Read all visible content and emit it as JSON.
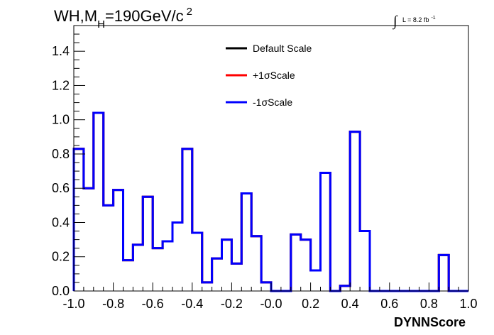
{
  "chart_data": {
    "type": "line",
    "title": {
      "main": "WH,M",
      "sub": "H",
      "tail": "=190GeV/c",
      "sup": "2"
    },
    "lumi": {
      "integral": "∫",
      "text": "L = 8.2 fb",
      "sup": "-1"
    },
    "xlabel": "DYNNScore",
    "ylabel": "",
    "xlim": [
      -1.0,
      1.0
    ],
    "ylim": [
      0,
      1.55
    ],
    "x_ticks": [
      "-1.0",
      "-0.8",
      "-0.6",
      "-0.4",
      "-0.2",
      "-0.0",
      "0.2",
      "0.4",
      "0.6",
      "0.8",
      "1.0"
    ],
    "y_ticks": [
      "0.0",
      "0.2",
      "0.4",
      "0.6",
      "0.8",
      "1.0",
      "1.2",
      "1.4"
    ],
    "bin_width": 0.05,
    "bin_low_edges": [
      -1.0,
      -0.95,
      -0.9,
      -0.85,
      -0.8,
      -0.75,
      -0.7,
      -0.65,
      -0.6,
      -0.55,
      -0.5,
      -0.45,
      -0.4,
      -0.35,
      -0.3,
      -0.25,
      -0.2,
      -0.15,
      -0.1,
      -0.05,
      0.0,
      0.05,
      0.1,
      0.15,
      0.2,
      0.25,
      0.3,
      0.35,
      0.4,
      0.45,
      0.5,
      0.55,
      0.6,
      0.65,
      0.7,
      0.75,
      0.8,
      0.85,
      0.9,
      0.95
    ],
    "series": [
      {
        "name": "Default Scale",
        "color": "#000000",
        "values": [
          0.83,
          0.6,
          1.04,
          0.5,
          0.59,
          0.18,
          0.27,
          0.55,
          0.25,
          0.29,
          0.4,
          0.83,
          0.34,
          0.05,
          0.19,
          0.3,
          0.16,
          0.57,
          0.32,
          0.05,
          0.0,
          0.0,
          0.33,
          0.3,
          0.12,
          0.69,
          0.0,
          0.03,
          0.93,
          0.35,
          0.0,
          0.0,
          0.0,
          0.0,
          0.0,
          0.0,
          0.0,
          0.21,
          0.0,
          0.0
        ]
      },
      {
        "name": "+1σScale",
        "color": "#ff0000",
        "values": [
          0.83,
          0.6,
          1.04,
          0.5,
          0.59,
          0.18,
          0.27,
          0.55,
          0.25,
          0.29,
          0.4,
          0.83,
          0.34,
          0.05,
          0.19,
          0.3,
          0.16,
          0.57,
          0.32,
          0.05,
          0.0,
          0.0,
          0.33,
          0.3,
          0.12,
          0.69,
          0.0,
          0.03,
          0.93,
          0.35,
          0.0,
          0.0,
          0.0,
          0.0,
          0.0,
          0.0,
          0.0,
          0.21,
          0.0,
          0.0
        ]
      },
      {
        "name": "-1σScale",
        "color": "#0000ff",
        "values": [
          0.83,
          0.6,
          1.04,
          0.5,
          0.59,
          0.18,
          0.27,
          0.55,
          0.25,
          0.29,
          0.4,
          0.83,
          0.34,
          0.05,
          0.19,
          0.3,
          0.16,
          0.57,
          0.32,
          0.05,
          0.0,
          0.0,
          0.33,
          0.3,
          0.12,
          0.69,
          0.0,
          0.03,
          0.93,
          0.35,
          0.0,
          0.0,
          0.0,
          0.0,
          0.0,
          0.0,
          0.0,
          0.21,
          0.0,
          0.0
        ]
      }
    ],
    "legend_position": "top-center",
    "grid": false
  }
}
